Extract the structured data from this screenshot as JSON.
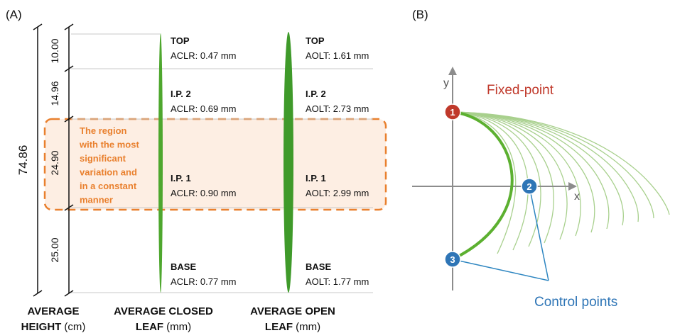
{
  "panel_a": {
    "label": "(A)",
    "total_height": "74.86",
    "segments": [
      "10.00",
      "14.96",
      "24.90",
      "25.00"
    ],
    "rows": [
      {
        "name": "TOP",
        "aclr": "ACLR: 0.47 mm",
        "aolt": "AOLT: 1.61 mm"
      },
      {
        "name": "I.P. 2",
        "aclr": "ACLR: 0.69 mm",
        "aolt": "AOLT: 2.73 mm"
      },
      {
        "name": "I.P. 1",
        "aclr": "ACLR: 0.90 mm",
        "aolt": "AOLT: 2.99 mm"
      },
      {
        "name": "BASE",
        "aclr": "ACLR: 0.77 mm",
        "aolt": "AOLT: 1.77 mm"
      }
    ],
    "region_note": [
      "The region",
      "with the most",
      "significant",
      "variation and",
      "in a constant",
      "manner"
    ],
    "column_labels": [
      {
        "lines": [
          "AVERAGE",
          "HEIGHT"
        ],
        "unit": "(cm)"
      },
      {
        "lines": [
          "AVERAGE CLOSED",
          "LEAF"
        ],
        "unit": "(mm)"
      },
      {
        "lines": [
          "AVERAGE OPEN",
          "LEAF"
        ],
        "unit": "(mm)"
      }
    ]
  },
  "panel_b": {
    "label": "(B)",
    "y_axis": "y",
    "x_axis": "x",
    "points": [
      "1",
      "2",
      "3"
    ],
    "fixed_point": "Fixed-point",
    "control_points": "Control points"
  }
}
